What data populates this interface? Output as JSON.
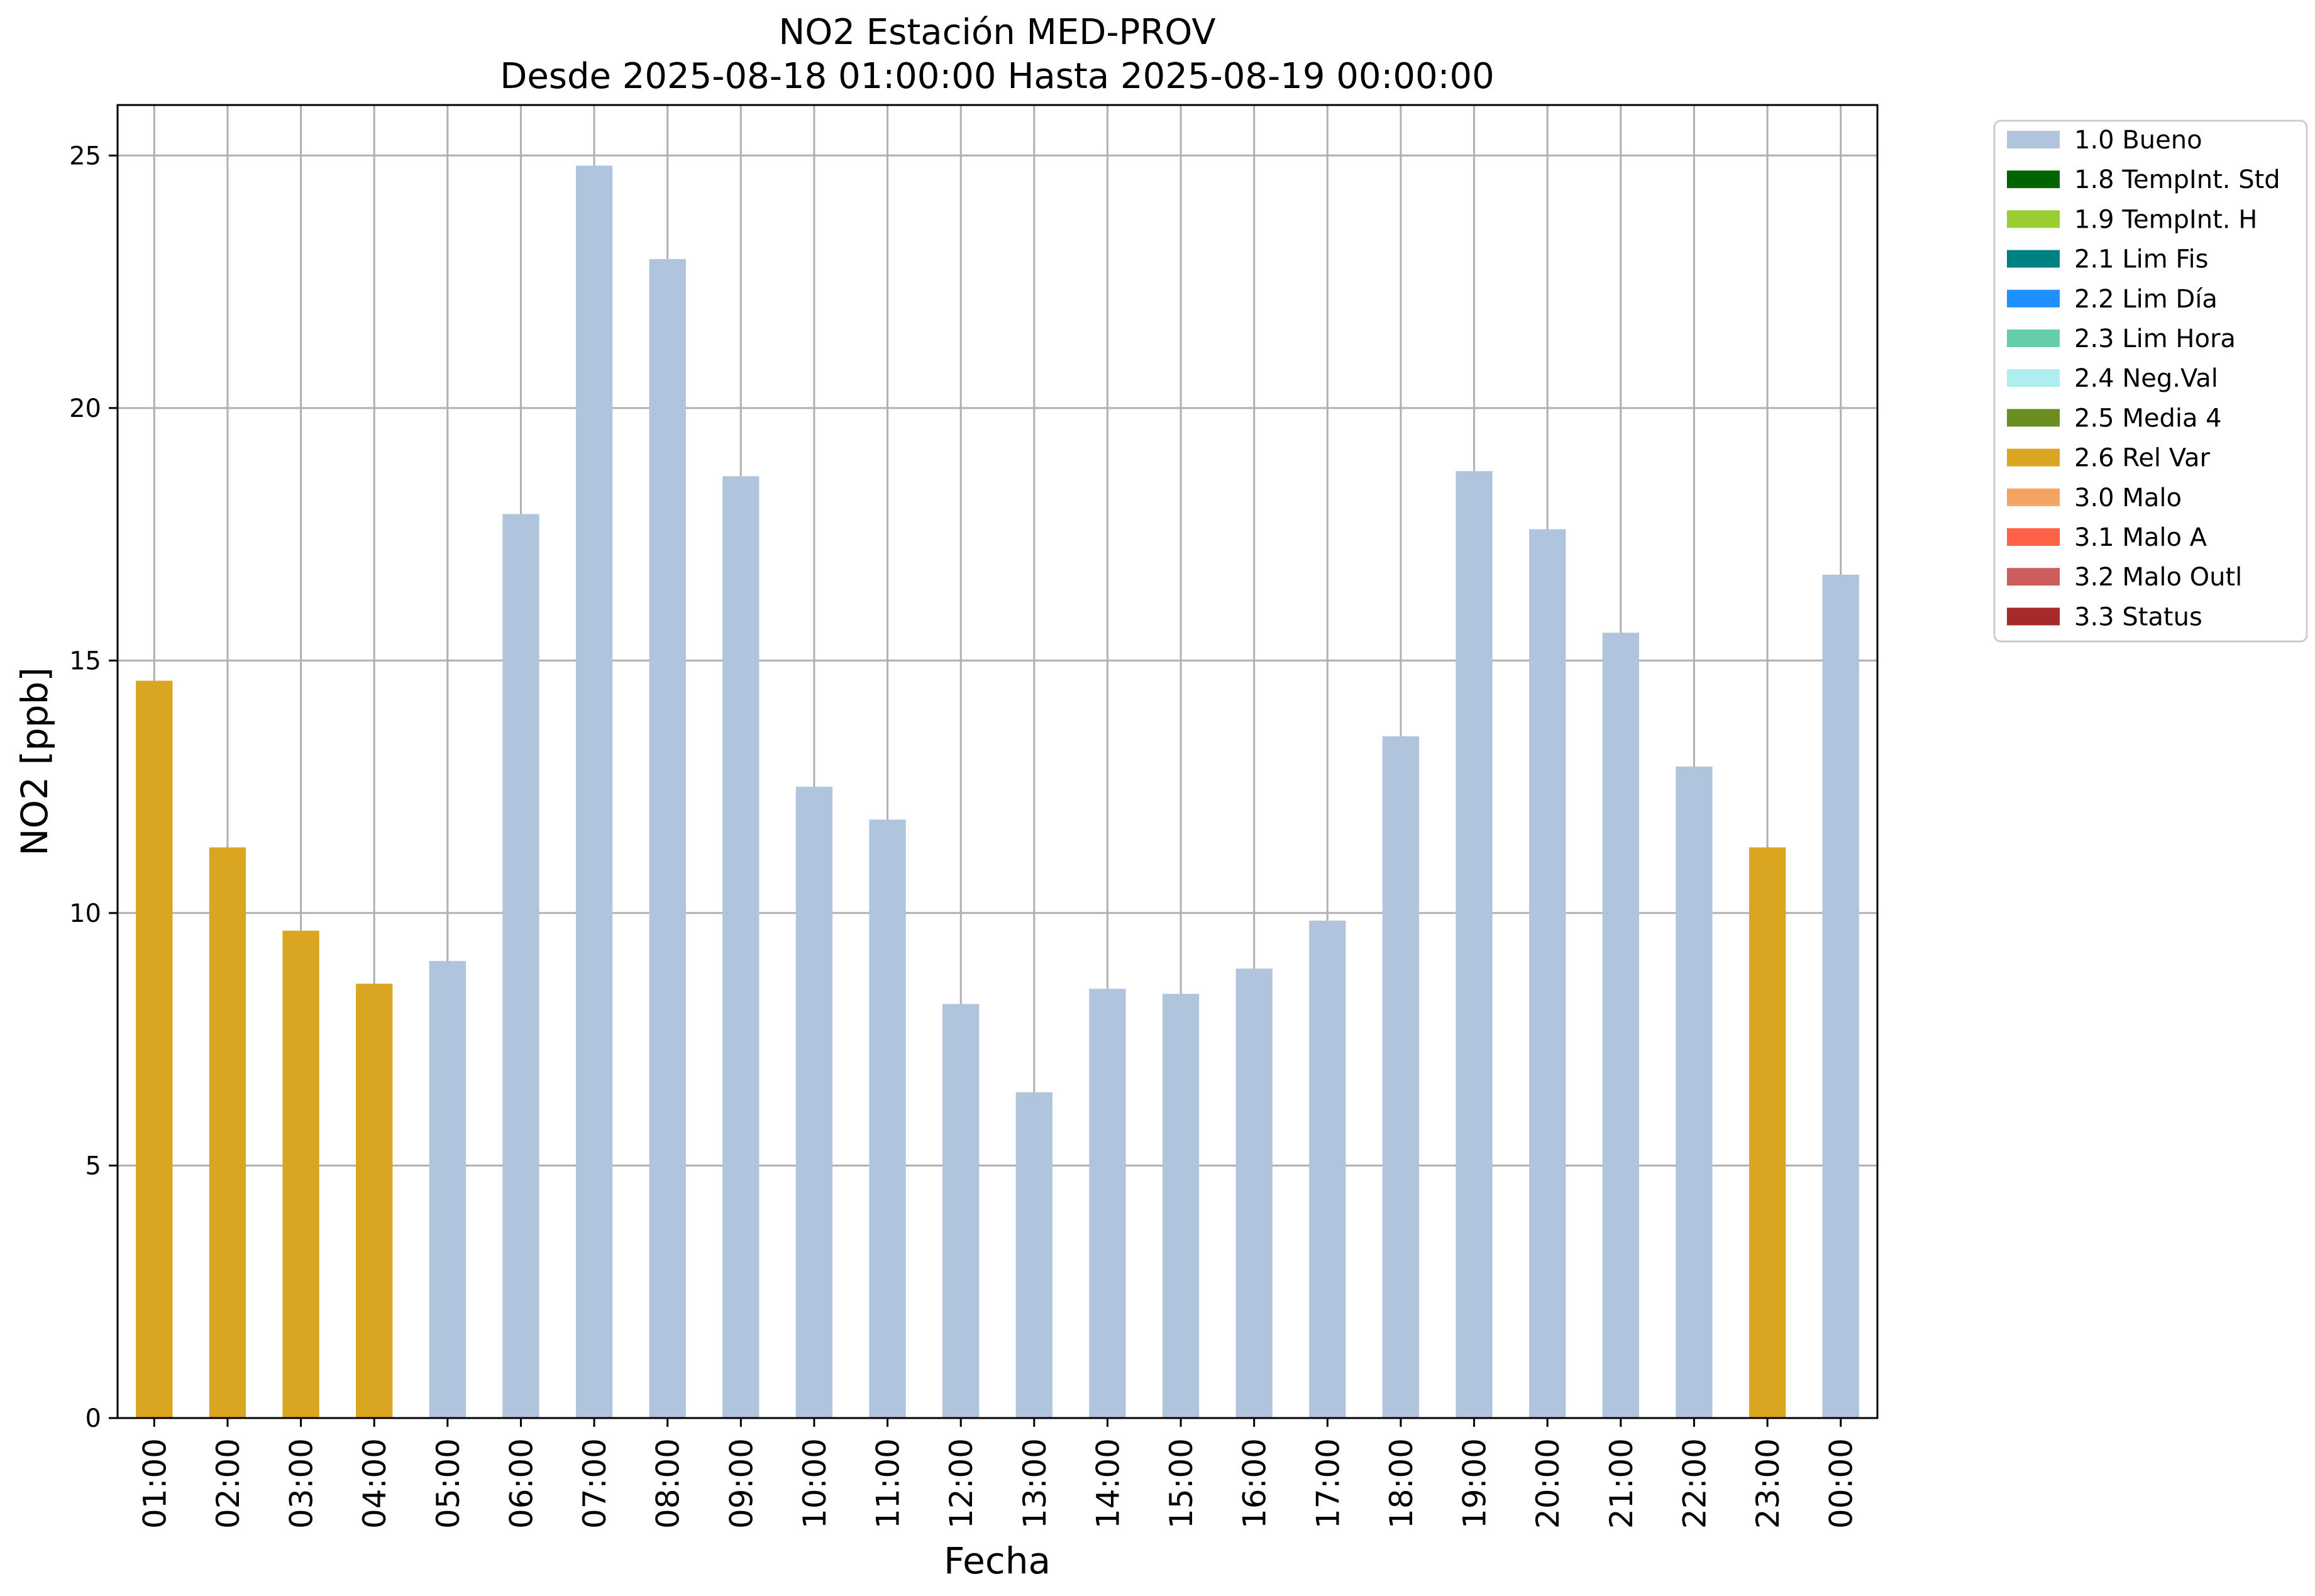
{
  "chart_data": {
    "type": "bar",
    "title": "NO2 Estación MED-PROV",
    "subtitle": "Desde 2025-08-18 01:00:00 Hasta 2025-08-19 00:00:00",
    "xlabel": "Fecha",
    "ylabel": "NO2 [ppb]",
    "ylim": [
      0,
      26
    ],
    "yticks": [
      0,
      5,
      10,
      15,
      20,
      25
    ],
    "grid": true,
    "legend_placement": "outside-top-right",
    "categories": [
      "01:00",
      "02:00",
      "03:00",
      "04:00",
      "05:00",
      "06:00",
      "07:00",
      "08:00",
      "09:00",
      "10:00",
      "11:00",
      "12:00",
      "13:00",
      "14:00",
      "15:00",
      "16:00",
      "17:00",
      "18:00",
      "19:00",
      "20:00",
      "21:00",
      "22:00",
      "23:00",
      "00:00"
    ],
    "values": [
      14.6,
      11.3,
      9.65,
      8.6,
      9.05,
      17.9,
      24.8,
      22.95,
      18.65,
      12.5,
      11.85,
      8.2,
      6.45,
      8.5,
      8.4,
      8.9,
      9.85,
      13.5,
      18.75,
      17.6,
      15.55,
      12.9,
      11.3,
      16.7
    ],
    "flags": [
      "2.6 Rel Var",
      "2.6 Rel Var",
      "2.6 Rel Var",
      "2.6 Rel Var",
      "1.0 Bueno",
      "1.0 Bueno",
      "1.0 Bueno",
      "1.0 Bueno",
      "1.0 Bueno",
      "1.0 Bueno",
      "1.0 Bueno",
      "1.0 Bueno",
      "1.0 Bueno",
      "1.0 Bueno",
      "1.0 Bueno",
      "1.0 Bueno",
      "1.0 Bueno",
      "1.0 Bueno",
      "1.0 Bueno",
      "1.0 Bueno",
      "1.0 Bueno",
      "1.0 Bueno",
      "2.6 Rel Var",
      "1.0 Bueno"
    ],
    "legend": [
      {
        "label": "1.0 Bueno",
        "color": "#b0c4de"
      },
      {
        "label": "1.8 TempInt. Std",
        "color": "#006400"
      },
      {
        "label": "1.9 TempInt. H",
        "color": "#9acd32"
      },
      {
        "label": "2.1 Lim Fis",
        "color": "#008080"
      },
      {
        "label": "2.2 Lim Día",
        "color": "#1e90ff"
      },
      {
        "label": "2.3 Lim Hora",
        "color": "#66cdaa"
      },
      {
        "label": "2.4 Neg.Val",
        "color": "#afeeee"
      },
      {
        "label": "2.5 Media 4",
        "color": "#6b8e23"
      },
      {
        "label": "2.6 Rel Var",
        "color": "#daa520"
      },
      {
        "label": "3.0 Malo",
        "color": "#f4a460"
      },
      {
        "label": "3.1 Malo A",
        "color": "#ff6347"
      },
      {
        "label": "3.2 Malo Outl",
        "color": "#cd5c5c"
      },
      {
        "label": "3.3 Status",
        "color": "#a52a2a"
      }
    ]
  }
}
